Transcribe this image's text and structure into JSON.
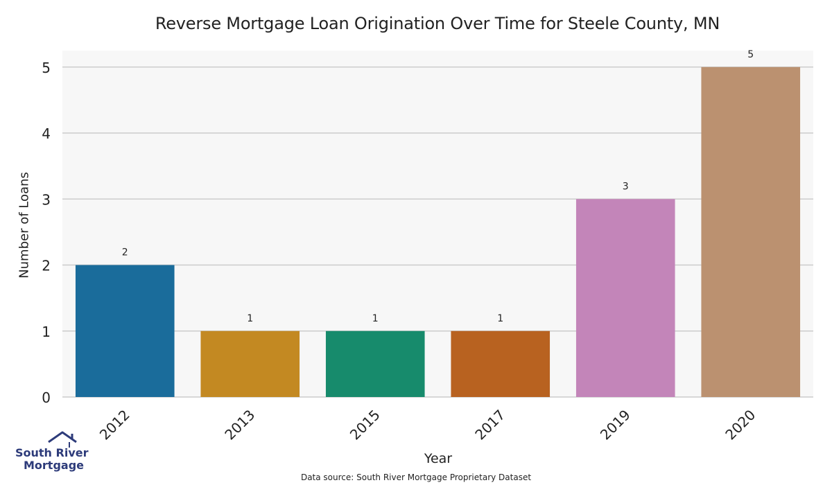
{
  "chart_data": {
    "type": "bar",
    "title": "Reverse Mortgage Loan Origination Over Time for Steele County, MN",
    "xlabel": "Year",
    "ylabel": "Number of Loans",
    "categories": [
      "2012",
      "2013",
      "2015",
      "2017",
      "2019",
      "2020"
    ],
    "values": [
      2,
      1,
      1,
      1,
      3,
      5
    ],
    "data_labels": [
      "2",
      "1",
      "1",
      "1",
      "3",
      "5"
    ],
    "colors": [
      "#1a6c9b",
      "#c38922",
      "#178b6c",
      "#b86220",
      "#c385b9",
      "#bb9170"
    ],
    "ylim": [
      0,
      5.25
    ],
    "yticks": [
      0,
      1,
      2,
      3,
      4,
      5
    ],
    "grid": true,
    "background": "#f7f7f7",
    "source": "Data source: South River Mortgage Proprietary Dataset"
  },
  "logo": {
    "line1": "South River",
    "line2": "Mortgage",
    "color": "#2d3b7a"
  }
}
